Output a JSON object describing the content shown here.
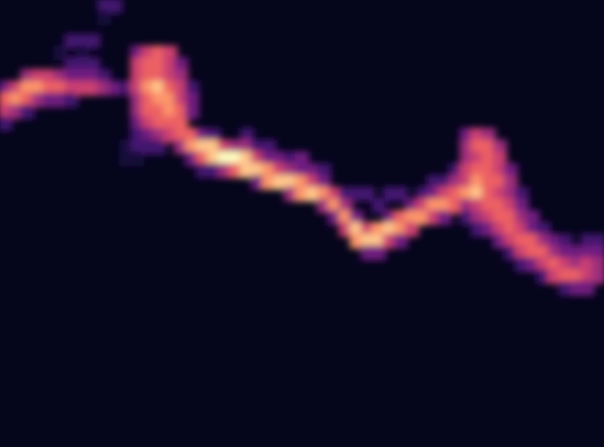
{
  "chart_data": {
    "type": "heatmap",
    "tick_labels": false,
    "xlim": [
      0,
      55
    ],
    "ylim": [
      38,
      0
    ],
    "zlim": [
      0,
      9
    ],
    "cells": [
      [
        0,
        7,
        3
      ],
      [
        0,
        8,
        6
      ],
      [
        0,
        9,
        5
      ],
      [
        0,
        10,
        2
      ],
      [
        1,
        7,
        5
      ],
      [
        1,
        8,
        7
      ],
      [
        1,
        9,
        4
      ],
      [
        2,
        6,
        4
      ],
      [
        2,
        7,
        7
      ],
      [
        2,
        8,
        6
      ],
      [
        2,
        9,
        2
      ],
      [
        3,
        6,
        5
      ],
      [
        3,
        7,
        7
      ],
      [
        3,
        8,
        4
      ],
      [
        4,
        6,
        5
      ],
      [
        4,
        7,
        6
      ],
      [
        4,
        8,
        3
      ],
      [
        5,
        4,
        1
      ],
      [
        5,
        6,
        4
      ],
      [
        5,
        7,
        6
      ],
      [
        5,
        8,
        3
      ],
      [
        6,
        3,
        2
      ],
      [
        6,
        5,
        2
      ],
      [
        6,
        6,
        3
      ],
      [
        6,
        7,
        5
      ],
      [
        6,
        8,
        2
      ],
      [
        7,
        3,
        2
      ],
      [
        7,
        4,
        1
      ],
      [
        7,
        5,
        2
      ],
      [
        7,
        6,
        3
      ],
      [
        7,
        7,
        5
      ],
      [
        8,
        3,
        2
      ],
      [
        8,
        5,
        2
      ],
      [
        8,
        6,
        3
      ],
      [
        8,
        7,
        5
      ],
      [
        9,
        0,
        2
      ],
      [
        9,
        1,
        1
      ],
      [
        9,
        6,
        2
      ],
      [
        9,
        7,
        4
      ],
      [
        10,
        0,
        2
      ],
      [
        10,
        7,
        3
      ],
      [
        11,
        7,
        2
      ],
      [
        11,
        12,
        1
      ],
      [
        11,
        13,
        1
      ],
      [
        12,
        4,
        3
      ],
      [
        12,
        5,
        5
      ],
      [
        12,
        6,
        5
      ],
      [
        12,
        7,
        5
      ],
      [
        12,
        8,
        4
      ],
      [
        12,
        9,
        4
      ],
      [
        12,
        10,
        3
      ],
      [
        12,
        11,
        2
      ],
      [
        12,
        12,
        2
      ],
      [
        12,
        13,
        1
      ],
      [
        13,
        4,
        5
      ],
      [
        13,
        5,
        6
      ],
      [
        13,
        6,
        6
      ],
      [
        13,
        7,
        7
      ],
      [
        13,
        8,
        6
      ],
      [
        13,
        9,
        6
      ],
      [
        13,
        10,
        5
      ],
      [
        13,
        11,
        3
      ],
      [
        13,
        12,
        2
      ],
      [
        14,
        4,
        6
      ],
      [
        14,
        5,
        6
      ],
      [
        14,
        6,
        6
      ],
      [
        14,
        7,
        8
      ],
      [
        14,
        8,
        7
      ],
      [
        14,
        9,
        6
      ],
      [
        14,
        10,
        6
      ],
      [
        14,
        11,
        4
      ],
      [
        14,
        12,
        2
      ],
      [
        15,
        4,
        5
      ],
      [
        15,
        5,
        5
      ],
      [
        15,
        6,
        5
      ],
      [
        15,
        7,
        6
      ],
      [
        15,
        8,
        7
      ],
      [
        15,
        9,
        7
      ],
      [
        15,
        10,
        6
      ],
      [
        15,
        11,
        5
      ],
      [
        16,
        5,
        3
      ],
      [
        16,
        6,
        4
      ],
      [
        16,
        7,
        5
      ],
      [
        16,
        8,
        5
      ],
      [
        16,
        9,
        6
      ],
      [
        16,
        10,
        6
      ],
      [
        16,
        11,
        6
      ],
      [
        16,
        12,
        4
      ],
      [
        17,
        7,
        2
      ],
      [
        17,
        8,
        3
      ],
      [
        17,
        9,
        3
      ],
      [
        17,
        11,
        6
      ],
      [
        17,
        12,
        7
      ],
      [
        17,
        13,
        3
      ],
      [
        18,
        11,
        3
      ],
      [
        18,
        12,
        8
      ],
      [
        18,
        13,
        6
      ],
      [
        18,
        14,
        2
      ],
      [
        19,
        11,
        2
      ],
      [
        19,
        12,
        8
      ],
      [
        19,
        13,
        8
      ],
      [
        19,
        14,
        2
      ],
      [
        20,
        12,
        5
      ],
      [
        20,
        13,
        9
      ],
      [
        20,
        14,
        4
      ],
      [
        21,
        12,
        4
      ],
      [
        21,
        13,
        9
      ],
      [
        21,
        14,
        6
      ],
      [
        22,
        11,
        2
      ],
      [
        22,
        12,
        4
      ],
      [
        22,
        13,
        8
      ],
      [
        22,
        14,
        8
      ],
      [
        23,
        12,
        2
      ],
      [
        23,
        13,
        5
      ],
      [
        23,
        14,
        8
      ],
      [
        23,
        15,
        3
      ],
      [
        24,
        12,
        2
      ],
      [
        24,
        13,
        3
      ],
      [
        24,
        14,
        7
      ],
      [
        24,
        15,
        7
      ],
      [
        25,
        13,
        3
      ],
      [
        25,
        14,
        5
      ],
      [
        25,
        15,
        8
      ],
      [
        26,
        13,
        2
      ],
      [
        26,
        14,
        4
      ],
      [
        26,
        15,
        8
      ],
      [
        26,
        16,
        4
      ],
      [
        27,
        13,
        3
      ],
      [
        27,
        14,
        3
      ],
      [
        27,
        15,
        7
      ],
      [
        27,
        16,
        7
      ],
      [
        28,
        14,
        3
      ],
      [
        28,
        15,
        5
      ],
      [
        28,
        16,
        8
      ],
      [
        29,
        14,
        2
      ],
      [
        29,
        15,
        3
      ],
      [
        29,
        16,
        7
      ],
      [
        29,
        17,
        4
      ],
      [
        30,
        16,
        5
      ],
      [
        30,
        17,
        7
      ],
      [
        30,
        18,
        3
      ],
      [
        31,
        16,
        2
      ],
      [
        31,
        17,
        4
      ],
      [
        31,
        18,
        7
      ],
      [
        31,
        19,
        5
      ],
      [
        32,
        16,
        2
      ],
      [
        32,
        18,
        3
      ],
      [
        32,
        19,
        8
      ],
      [
        32,
        20,
        7
      ],
      [
        33,
        16,
        2
      ],
      [
        33,
        19,
        5
      ],
      [
        33,
        20,
        8
      ],
      [
        33,
        21,
        3
      ],
      [
        34,
        17,
        2
      ],
      [
        34,
        19,
        7
      ],
      [
        34,
        20,
        8
      ],
      [
        34,
        21,
        3
      ],
      [
        35,
        16,
        2
      ],
      [
        35,
        18,
        3
      ],
      [
        35,
        19,
        8
      ],
      [
        35,
        20,
        5
      ],
      [
        36,
        16,
        2
      ],
      [
        36,
        18,
        6
      ],
      [
        36,
        19,
        7
      ],
      [
        36,
        20,
        3
      ],
      [
        37,
        17,
        3
      ],
      [
        37,
        18,
        7
      ],
      [
        37,
        19,
        5
      ],
      [
        38,
        16,
        2
      ],
      [
        38,
        17,
        5
      ],
      [
        38,
        18,
        7
      ],
      [
        39,
        15,
        2
      ],
      [
        39,
        16,
        3
      ],
      [
        39,
        17,
        7
      ],
      [
        39,
        18,
        5
      ],
      [
        40,
        15,
        2
      ],
      [
        40,
        16,
        5
      ],
      [
        40,
        17,
        7
      ],
      [
        40,
        18,
        3
      ],
      [
        41,
        14,
        2
      ],
      [
        41,
        15,
        4
      ],
      [
        41,
        16,
        6
      ],
      [
        41,
        17,
        6
      ],
      [
        42,
        11,
        3
      ],
      [
        42,
        12,
        4
      ],
      [
        42,
        13,
        4
      ],
      [
        42,
        14,
        5
      ],
      [
        42,
        15,
        5
      ],
      [
        42,
        16,
        7
      ],
      [
        42,
        17,
        4
      ],
      [
        42,
        18,
        2
      ],
      [
        43,
        11,
        5
      ],
      [
        43,
        12,
        6
      ],
      [
        43,
        13,
        5
      ],
      [
        43,
        14,
        6
      ],
      [
        43,
        15,
        7
      ],
      [
        43,
        16,
        8
      ],
      [
        43,
        17,
        5
      ],
      [
        43,
        18,
        4
      ],
      [
        43,
        19,
        2
      ],
      [
        44,
        11,
        4
      ],
      [
        44,
        12,
        6
      ],
      [
        44,
        13,
        6
      ],
      [
        44,
        14,
        6
      ],
      [
        44,
        15,
        6
      ],
      [
        44,
        16,
        6
      ],
      [
        44,
        17,
        6
      ],
      [
        44,
        18,
        5
      ],
      [
        44,
        19,
        3
      ],
      [
        45,
        12,
        4
      ],
      [
        45,
        13,
        5
      ],
      [
        45,
        14,
        5
      ],
      [
        45,
        15,
        6
      ],
      [
        45,
        16,
        5
      ],
      [
        45,
        17,
        6
      ],
      [
        45,
        18,
        6
      ],
      [
        45,
        19,
        5
      ],
      [
        45,
        20,
        3
      ],
      [
        46,
        14,
        3
      ],
      [
        46,
        15,
        4
      ],
      [
        46,
        16,
        4
      ],
      [
        46,
        17,
        5
      ],
      [
        46,
        18,
        6
      ],
      [
        46,
        19,
        6
      ],
      [
        46,
        20,
        5
      ],
      [
        46,
        21,
        2
      ],
      [
        47,
        16,
        2
      ],
      [
        47,
        17,
        3
      ],
      [
        47,
        18,
        4
      ],
      [
        47,
        19,
        5
      ],
      [
        47,
        20,
        6
      ],
      [
        47,
        21,
        5
      ],
      [
        47,
        22,
        2
      ],
      [
        48,
        18,
        3
      ],
      [
        48,
        19,
        3
      ],
      [
        48,
        20,
        6
      ],
      [
        48,
        21,
        6
      ],
      [
        48,
        22,
        3
      ],
      [
        49,
        19,
        2
      ],
      [
        49,
        20,
        4
      ],
      [
        49,
        21,
        6
      ],
      [
        49,
        22,
        5
      ],
      [
        49,
        23,
        2
      ],
      [
        50,
        20,
        3
      ],
      [
        50,
        21,
        4
      ],
      [
        50,
        22,
        6
      ],
      [
        50,
        23,
        5
      ],
      [
        51,
        20,
        2
      ],
      [
        51,
        21,
        3
      ],
      [
        51,
        22,
        5
      ],
      [
        51,
        23,
        6
      ],
      [
        51,
        24,
        2
      ],
      [
        52,
        21,
        3
      ],
      [
        52,
        22,
        4
      ],
      [
        52,
        23,
        6
      ],
      [
        52,
        24,
        3
      ],
      [
        53,
        20,
        2
      ],
      [
        53,
        21,
        3
      ],
      [
        53,
        22,
        5
      ],
      [
        53,
        23,
        5
      ],
      [
        53,
        24,
        3
      ],
      [
        54,
        20,
        2
      ],
      [
        54,
        21,
        3
      ],
      [
        54,
        22,
        4
      ],
      [
        54,
        23,
        4
      ]
    ]
  }
}
